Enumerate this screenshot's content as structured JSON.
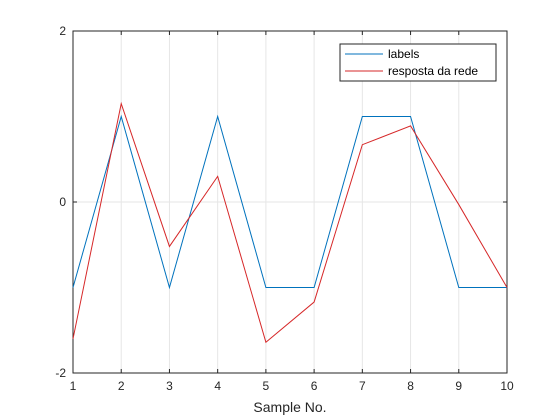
{
  "chart_data": {
    "type": "line",
    "x": [
      1,
      2,
      3,
      4,
      5,
      6,
      7,
      8,
      9,
      10
    ],
    "xlabel": "Sample No.",
    "ylabel": "",
    "xlim": [
      1,
      10
    ],
    "ylim": [
      -2,
      2
    ],
    "xticks": [
      "1",
      "2",
      "3",
      "4",
      "5",
      "6",
      "7",
      "8",
      "9",
      "10"
    ],
    "yticks": [
      "-2",
      "0",
      "2"
    ],
    "grid": true,
    "legend_position": "top-right",
    "series": [
      {
        "name": "labels",
        "color": "#0072BD",
        "values": [
          -1,
          1,
          -1,
          1,
          -1,
          -1,
          1,
          1,
          -1,
          -1
        ]
      },
      {
        "name": "resposta da rede",
        "color": "#D62728",
        "values": [
          -1.6,
          1.15,
          -0.52,
          0.3,
          -1.64,
          -1.17,
          0.67,
          0.89,
          -0.03,
          -1.0
        ]
      }
    ]
  }
}
